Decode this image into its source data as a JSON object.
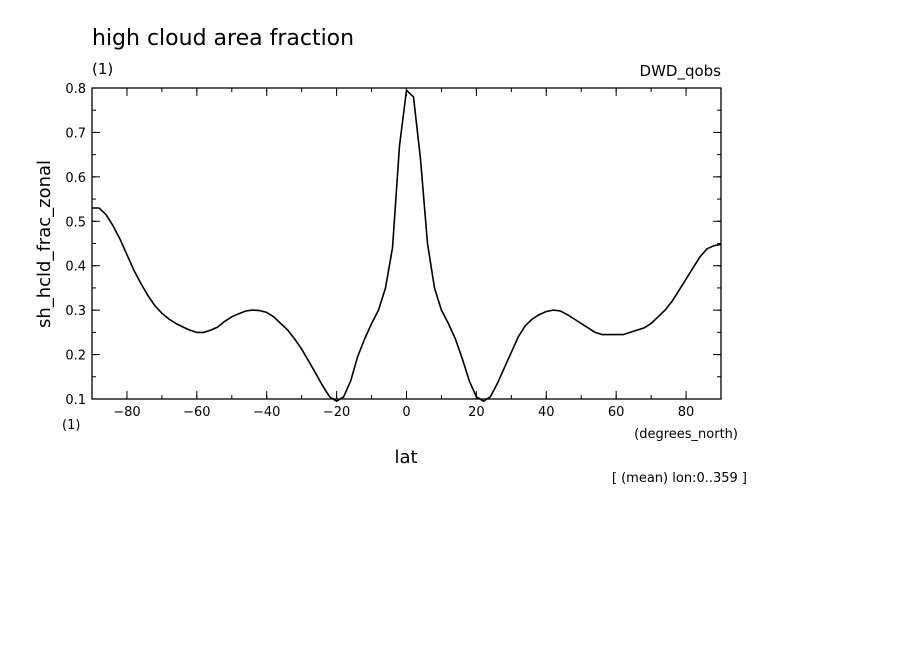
{
  "chart_data": {
    "type": "line",
    "title": "high cloud area fraction",
    "units": "(1)",
    "dataset": "DWD_qobs",
    "ylabel": "sh_hcld_frac_zonal",
    "ylabel_units": "(1)",
    "xlabel": "lat",
    "xlabel_units": "(degrees_north)",
    "annotation": "[ (mean) lon:0..359 ]",
    "xlim": [
      -90,
      90
    ],
    "ylim": [
      0.1,
      0.8
    ],
    "x_ticks": [
      -80,
      -60,
      -40,
      -20,
      0,
      20,
      40,
      60,
      80
    ],
    "y_ticks": [
      0.1,
      0.2,
      0.3,
      0.4,
      0.5,
      0.6,
      0.7,
      0.8
    ],
    "y_tick_labels": [
      "0.1",
      "0.2",
      "0.3",
      "0.4",
      "0.5",
      "0.6",
      "0.7",
      "0.8"
    ],
    "grid": false,
    "series": [
      {
        "color": "#000000",
        "x": [
          -90,
          -88,
          -86,
          -84,
          -82,
          -80,
          -78,
          -76,
          -74,
          -72,
          -70,
          -68,
          -66,
          -64,
          -62,
          -60,
          -58,
          -56,
          -54,
          -52,
          -50,
          -48,
          -46,
          -44,
          -42,
          -40,
          -38,
          -36,
          -34,
          -32,
          -30,
          -28,
          -26,
          -24,
          -22,
          -20,
          -18,
          -16,
          -14,
          -12,
          -10,
          -8,
          -6,
          -4,
          -2,
          0,
          2,
          4,
          6,
          8,
          10,
          12,
          14,
          16,
          18,
          20,
          22,
          24,
          26,
          28,
          30,
          32,
          34,
          36,
          38,
          40,
          42,
          44,
          46,
          48,
          50,
          52,
          54,
          56,
          58,
          60,
          62,
          64,
          66,
          68,
          70,
          72,
          74,
          76,
          78,
          80,
          82,
          84,
          86,
          88,
          90
        ],
        "y": [
          0.53,
          0.53,
          0.515,
          0.49,
          0.46,
          0.425,
          0.39,
          0.36,
          0.333,
          0.31,
          0.293,
          0.28,
          0.27,
          0.262,
          0.255,
          0.25,
          0.25,
          0.255,
          0.262,
          0.275,
          0.285,
          0.292,
          0.298,
          0.3,
          0.299,
          0.295,
          0.285,
          0.27,
          0.255,
          0.235,
          0.212,
          0.185,
          0.158,
          0.13,
          0.105,
          0.095,
          0.105,
          0.14,
          0.195,
          0.235,
          0.27,
          0.3,
          0.35,
          0.44,
          0.67,
          0.795,
          0.78,
          0.64,
          0.45,
          0.35,
          0.3,
          0.27,
          0.235,
          0.19,
          0.14,
          0.105,
          0.095,
          0.105,
          0.135,
          0.17,
          0.205,
          0.24,
          0.265,
          0.28,
          0.29,
          0.297,
          0.3,
          0.298,
          0.29,
          0.28,
          0.27,
          0.26,
          0.25,
          0.245,
          0.245,
          0.245,
          0.245,
          0.25,
          0.255,
          0.26,
          0.27,
          0.285,
          0.3,
          0.32,
          0.345,
          0.37,
          0.395,
          0.42,
          0.438,
          0.445,
          0.448
        ]
      }
    ]
  }
}
